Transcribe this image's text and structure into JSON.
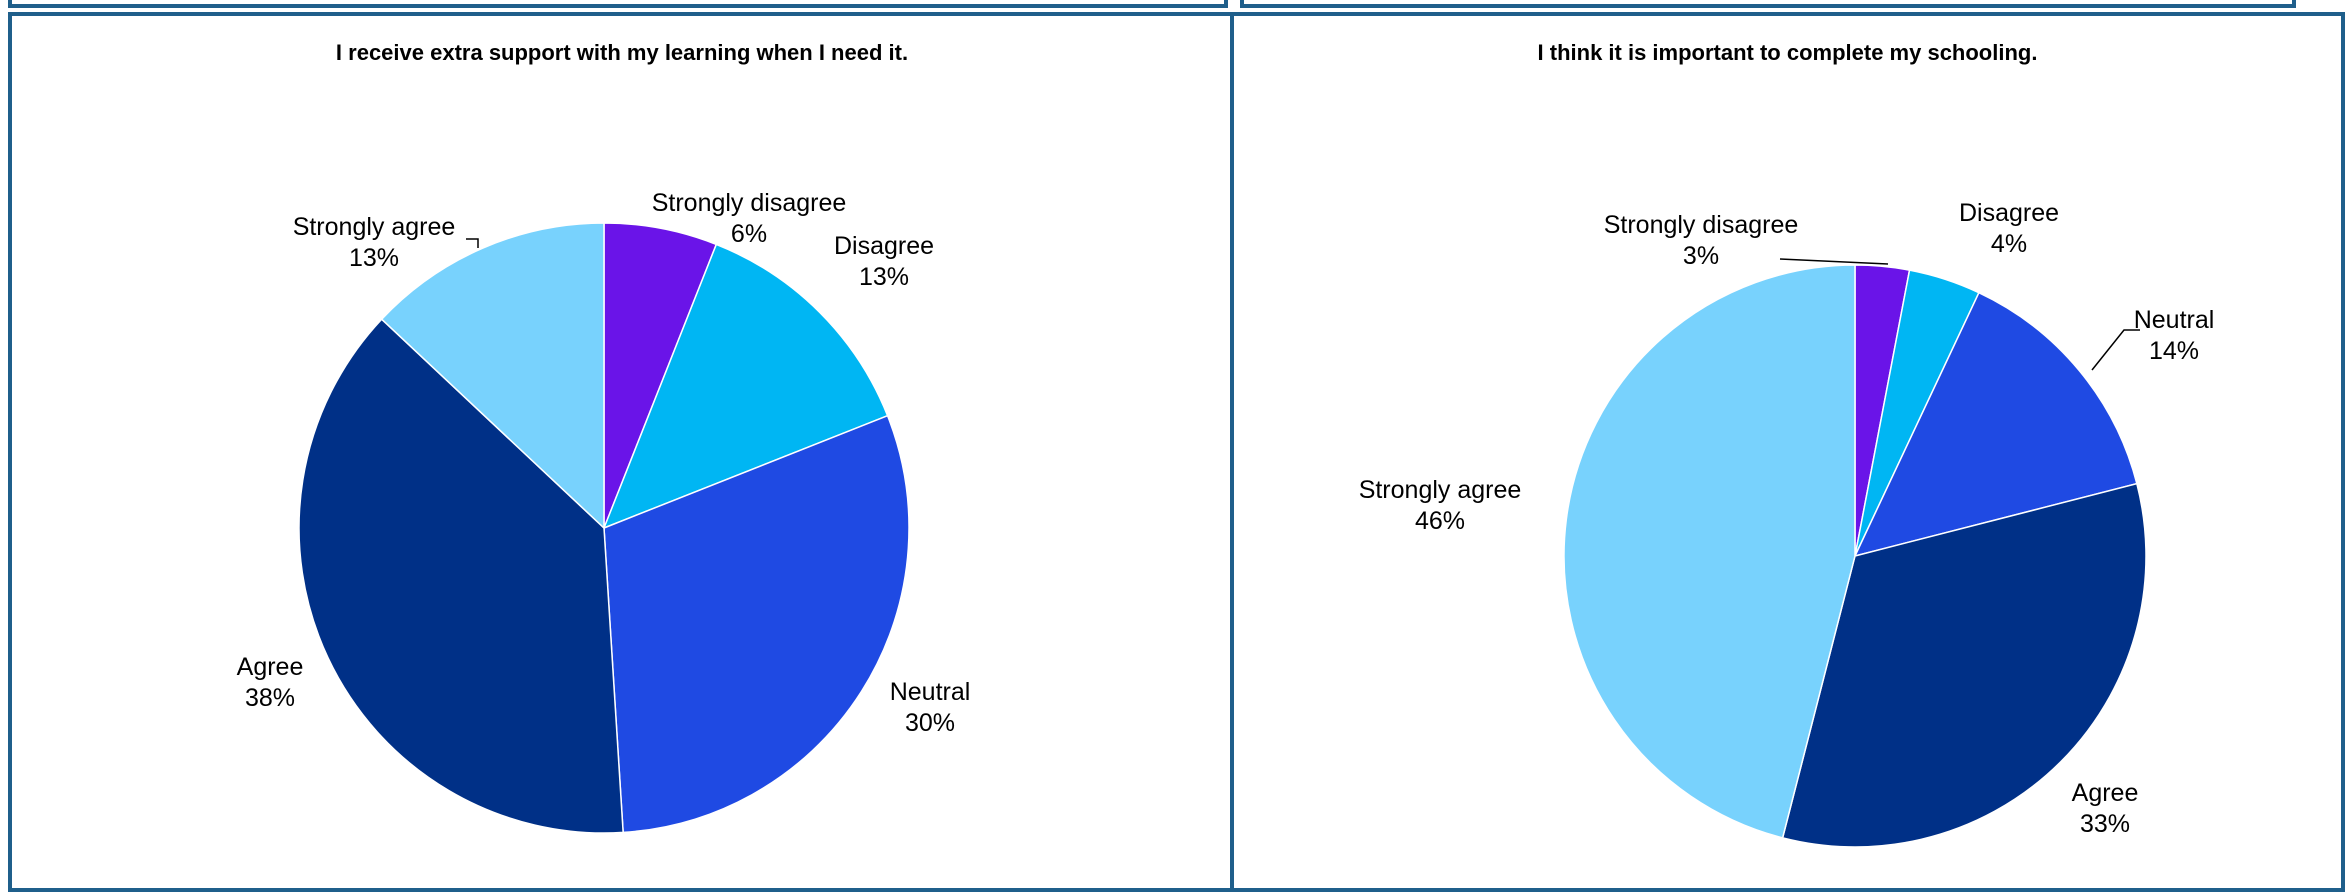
{
  "chart_data": [
    {
      "type": "pie",
      "title": "I receive extra support with my learning when I need it.",
      "legend": "none (labels on slices)",
      "slices": [
        {
          "label": "Strongly disagree",
          "value": 6,
          "value_label": "6%",
          "color": "#6a14e8"
        },
        {
          "label": "Disagree",
          "value": 13,
          "value_label": "13%",
          "color": "#00b6f3"
        },
        {
          "label": "Neutral",
          "value": 30,
          "value_label": "30%",
          "color": "#1f4ae3"
        },
        {
          "label": "Agree",
          "value": 38,
          "value_label": "38%",
          "color": "#003087"
        },
        {
          "label": "Strongly agree",
          "value": 13,
          "value_label": "13%",
          "color": "#78d2fd"
        }
      ]
    },
    {
      "type": "pie",
      "title": "I think it is important to complete my schooling.",
      "legend": "none (labels on slices)",
      "slices": [
        {
          "label": "Strongly disagree",
          "value": 3,
          "value_label": "3%",
          "color": "#6a14e8"
        },
        {
          "label": "Disagree",
          "value": 4,
          "value_label": "4%",
          "color": "#00b6f3"
        },
        {
          "label": "Neutral",
          "value": 14,
          "value_label": "14%",
          "color": "#1f4ae3"
        },
        {
          "label": "Agree",
          "value": 33,
          "value_label": "33%",
          "color": "#003087"
        },
        {
          "label": "Strongly agree",
          "value": 46,
          "value_label": "46%",
          "color": "#78d2fd"
        }
      ]
    }
  ]
}
